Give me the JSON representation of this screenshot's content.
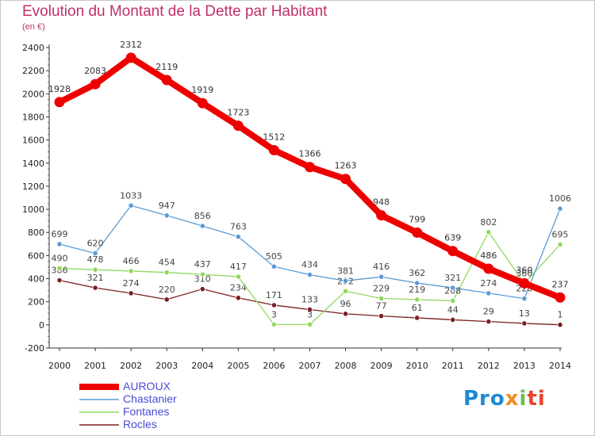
{
  "chart_data": {
    "type": "line",
    "title": "Evolution du Montant de la Dette par Habitant",
    "subtitle": "(en €)",
    "x": [
      2000,
      2001,
      2002,
      2003,
      2004,
      2005,
      2006,
      2007,
      2008,
      2009,
      2010,
      2011,
      2012,
      2013,
      2014
    ],
    "ylim": [
      -200,
      2400
    ],
    "yticks": [
      -200,
      0,
      200,
      400,
      600,
      800,
      1000,
      1200,
      1400,
      1600,
      1800,
      2000,
      2200,
      2400
    ],
    "grid": false,
    "legend_position": "bottom-left",
    "series": [
      {
        "name": "AUROUX",
        "color": "#ee0000",
        "values": [
          1928,
          2083,
          2312,
          2119,
          1919,
          1723,
          1512,
          1366,
          1263,
          948,
          799,
          639,
          486,
          360,
          237
        ]
      },
      {
        "name": "Chastanier",
        "color": "#5a9bd5",
        "values": [
          699,
          620,
          1033,
          947,
          856,
          763,
          505,
          434,
          381,
          416,
          362,
          321,
          274,
          228,
          1006
        ]
      },
      {
        "name": "Fontanes",
        "color": "#90d860",
        "values": [
          490,
          478,
          466,
          454,
          437,
          417,
          3,
          3,
          292,
          229,
          219,
          208,
          802,
          360,
          695
        ]
      },
      {
        "name": "Rocles",
        "color": "#7a2020",
        "values": [
          386,
          321,
          274,
          220,
          310,
          234,
          171,
          133,
          96,
          77,
          61,
          44,
          29,
          13,
          1
        ]
      }
    ]
  },
  "logo": {
    "p1": "Pro",
    "p2": "x",
    "p3": "i",
    "p4": "ti"
  }
}
